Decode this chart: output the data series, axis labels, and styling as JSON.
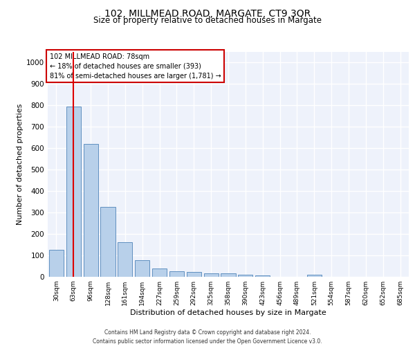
{
  "title_line1": "102, MILLMEAD ROAD, MARGATE, CT9 3QR",
  "title_line2": "Size of property relative to detached houses in Margate",
  "xlabel": "Distribution of detached houses by size in Margate",
  "ylabel": "Number of detached properties",
  "categories": [
    "30sqm",
    "63sqm",
    "96sqm",
    "128sqm",
    "161sqm",
    "194sqm",
    "227sqm",
    "259sqm",
    "292sqm",
    "325sqm",
    "358sqm",
    "390sqm",
    "423sqm",
    "456sqm",
    "489sqm",
    "521sqm",
    "554sqm",
    "587sqm",
    "620sqm",
    "652sqm",
    "685sqm"
  ],
  "values": [
    125,
    795,
    620,
    325,
    160,
    78,
    40,
    27,
    24,
    17,
    15,
    10,
    8,
    0,
    0,
    10,
    0,
    0,
    0,
    0,
    0
  ],
  "bar_color": "#b8d0ea",
  "bar_edge_color": "#6090c0",
  "redline_x": 1,
  "annotation_title": "102 MILLMEAD ROAD: 78sqm",
  "annotation_line1": "← 18% of detached houses are smaller (393)",
  "annotation_line2": "81% of semi-detached houses are larger (1,781) →",
  "annotation_box_color": "#ffffff",
  "annotation_box_edge": "#cc0000",
  "footer_line1": "Contains HM Land Registry data © Crown copyright and database right 2024.",
  "footer_line2": "Contains public sector information licensed under the Open Government Licence v3.0.",
  "ylim": [
    0,
    1050
  ],
  "yticks": [
    0,
    100,
    200,
    300,
    400,
    500,
    600,
    700,
    800,
    900,
    1000
  ],
  "bg_color": "#eef2fb",
  "grid_color": "#ffffff",
  "redline_color": "#dd0000",
  "fig_width": 6.0,
  "fig_height": 5.0,
  "fig_dpi": 100
}
